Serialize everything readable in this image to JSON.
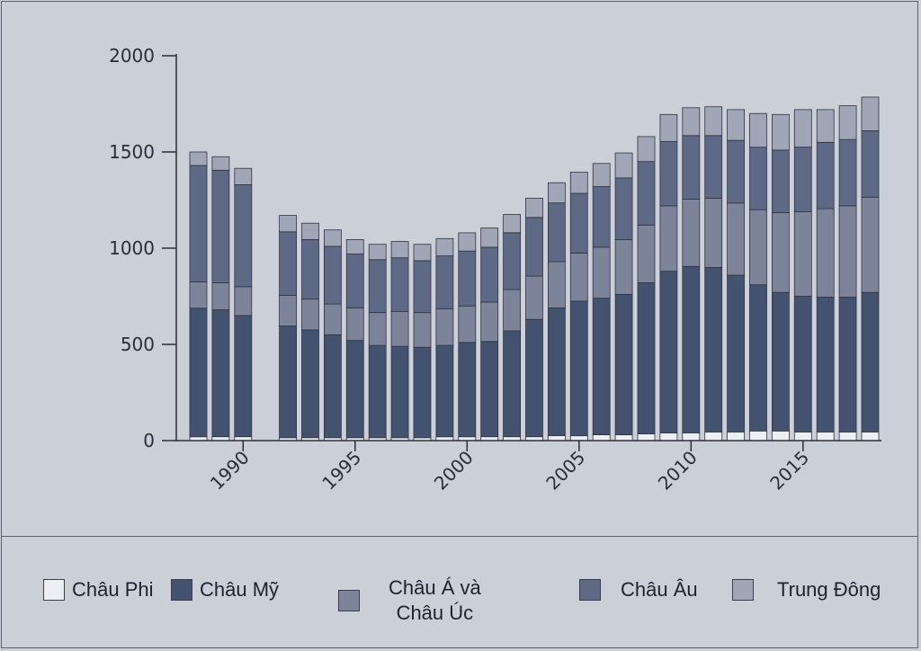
{
  "chart_data": {
    "type": "bar",
    "stacked": true,
    "title": "",
    "xlabel": "",
    "ylabel": "",
    "ylim": [
      0,
      2000
    ],
    "yticks": [
      "0",
      "500",
      "1000",
      "1500",
      "2000"
    ],
    "xticks": [
      "1990",
      "1995",
      "2000",
      "2005",
      "2010",
      "2015"
    ],
    "xtick_years": [
      1990,
      1995,
      2000,
      2005,
      2010,
      2015
    ],
    "grid": false,
    "legend_position": "bottom",
    "x": [
      1988,
      1989,
      1990,
      1992,
      1993,
      1994,
      1995,
      1996,
      1997,
      1998,
      1999,
      2000,
      2001,
      2002,
      2003,
      2004,
      2005,
      2006,
      2007,
      2008,
      2009,
      2010,
      2011,
      2012,
      2013,
      2014,
      2015,
      2016,
      2017,
      2018
    ],
    "series": [
      {
        "name": "Châu Phi",
        "color": "#eeeff2",
        "values": [
          20,
          20,
          20,
          15,
          15,
          15,
          15,
          15,
          15,
          15,
          20,
          20,
          20,
          20,
          20,
          25,
          25,
          30,
          30,
          35,
          40,
          40,
          45,
          45,
          50,
          50,
          45,
          45,
          45,
          45
        ]
      },
      {
        "name": "Châu Mỹ",
        "color": "#43526e",
        "values": [
          668,
          660,
          630,
          580,
          560,
          535,
          505,
          480,
          475,
          470,
          475,
          490,
          495,
          550,
          610,
          665,
          700,
          710,
          730,
          785,
          840,
          865,
          855,
          815,
          760,
          720,
          705,
          700,
          700,
          725
        ]
      },
      {
        "name": "Châu Á và\nChâu Úc",
        "color": "#7d8399",
        "values": [
          137,
          140,
          150,
          160,
          160,
          160,
          170,
          170,
          180,
          180,
          190,
          190,
          205,
          215,
          225,
          240,
          250,
          265,
          285,
          300,
          340,
          350,
          360,
          375,
          390,
          415,
          440,
          460,
          475,
          495
        ]
      },
      {
        "name": "Châu Âu",
        "color": "#5d6985",
        "values": [
          605,
          585,
          530,
          330,
          310,
          300,
          280,
          275,
          280,
          270,
          275,
          285,
          285,
          295,
          305,
          305,
          310,
          315,
          320,
          330,
          335,
          330,
          325,
          325,
          325,
          325,
          335,
          345,
          345,
          345
        ]
      },
      {
        "name": "Trung Đông",
        "color": "#a1a6b6",
        "values": [
          70,
          70,
          85,
          85,
          85,
          85,
          75,
          80,
          85,
          85,
          90,
          95,
          100,
          95,
          100,
          105,
          110,
          120,
          130,
          130,
          140,
          145,
          150,
          160,
          175,
          185,
          195,
          170,
          175,
          175
        ]
      }
    ]
  }
}
